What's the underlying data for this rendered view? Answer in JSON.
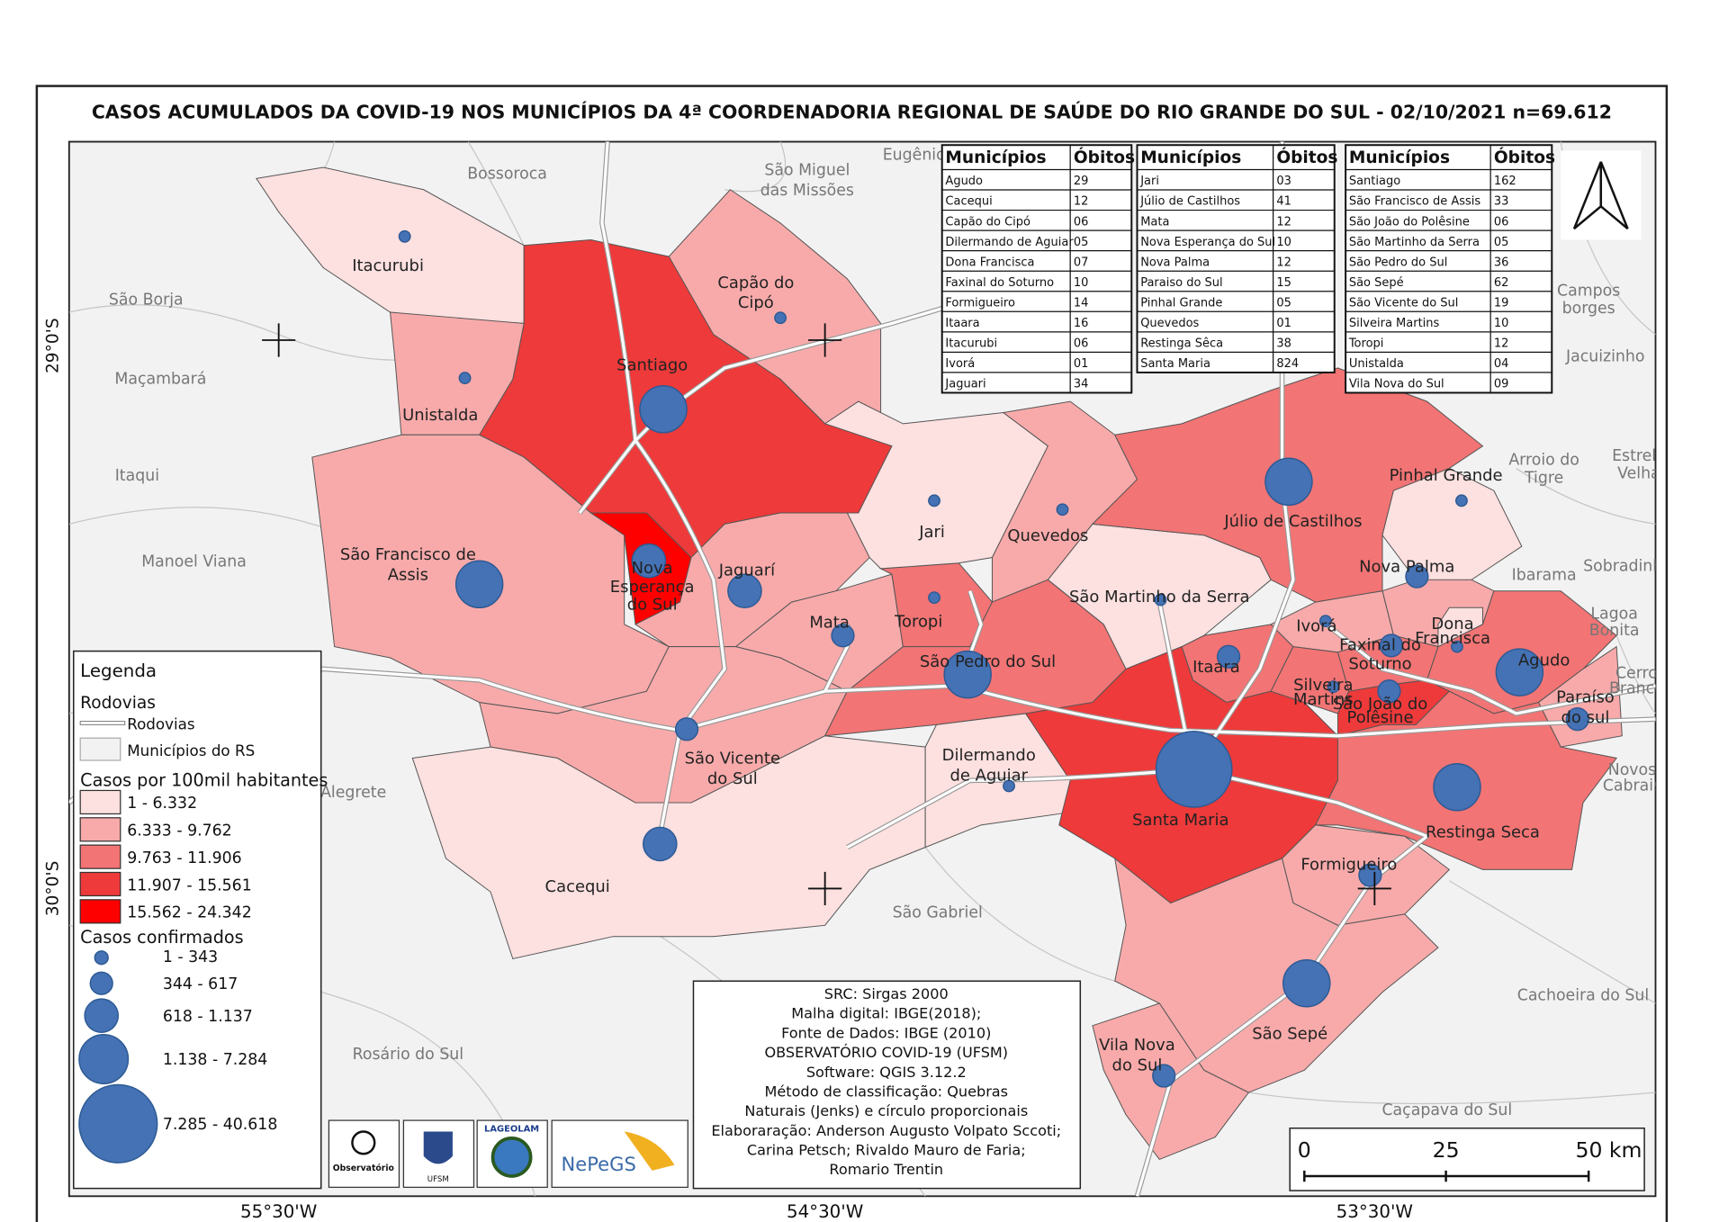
{
  "title": "CASOS ACUMULADOS DA COVID-19 NOS MUNICÍPIOS DA 4ª COORDENADORIA REGIONAL DE SAÚDE DO RIO GRANDE DO SUL - 02/10/2021 n=69.612",
  "colors": {
    "class1": "#fde0e0",
    "class2": "#f8aaaa",
    "class3": "#f27474",
    "class4": "#ee3a3a",
    "class5": "#ff0000",
    "bubble": "#4472b4",
    "background": "#f2f2f2"
  },
  "municipalities": [
    {
      "name": "Itacurubi",
      "rate_class": 1
    },
    {
      "name": "Capão do Cipó",
      "rate_class": 2
    },
    {
      "name": "Santiago",
      "rate_class": 4
    },
    {
      "name": "Unistalda",
      "rate_class": 2
    },
    {
      "name": "São Francisco de Assis",
      "rate_class": 2
    },
    {
      "name": "Nova Esperança do Sul",
      "rate_class": 5
    },
    {
      "name": "Jaguari",
      "rate_class": 2
    },
    {
      "name": "Mata",
      "rate_class": 2
    },
    {
      "name": "Toropi",
      "rate_class": 3
    },
    {
      "name": "Jari",
      "rate_class": 1
    },
    {
      "name": "Quevedos",
      "rate_class": 2
    },
    {
      "name": "São Vicente do Sul",
      "rate_class": 2
    },
    {
      "name": "Cacequi",
      "rate_class": 1
    },
    {
      "name": "São Pedro do Sul",
      "rate_class": 3
    },
    {
      "name": "Dilermando de Aguiar",
      "rate_class": 1
    },
    {
      "name": "São Martinho da Serra",
      "rate_class": 1
    },
    {
      "name": "Júlio de Castilhos",
      "rate_class": 3
    },
    {
      "name": "Pinhal Grande",
      "rate_class": 1
    },
    {
      "name": "Nova Palma",
      "rate_class": 2
    },
    {
      "name": "Itaara",
      "rate_class": 3
    },
    {
      "name": "Santa Maria",
      "rate_class": 4
    },
    {
      "name": "Ivorá",
      "rate_class": 2
    },
    {
      "name": "Silveira Martins",
      "rate_class": 3
    },
    {
      "name": "Faxinal do Soturno",
      "rate_class": 3
    },
    {
      "name": "São João do Polêsine",
      "rate_class": 4
    },
    {
      "name": "Dona Francisca",
      "rate_class": 1
    },
    {
      "name": "Agudo",
      "rate_class": 3
    },
    {
      "name": "Paraíso do Sul",
      "rate_class": 2
    },
    {
      "name": "Restinga Seca",
      "rate_class": 3
    },
    {
      "name": "Formigueiro",
      "rate_class": 2
    },
    {
      "name": "São Sepé",
      "rate_class": 2
    },
    {
      "name": "Vila Nova do Sul",
      "rate_class": 2
    }
  ],
  "map_labels": {
    "itacurubi": "Itacurubi",
    "capao1": "Capão do",
    "capao2": "Cipó",
    "santiago": "Santiago",
    "unistalda": "Unistalda",
    "sfa1": "São Francisco de",
    "sfa2": "Assis",
    "ne1": "Nova",
    "ne2": "Esperança",
    "ne3": "do Sul",
    "jaguari": "Jaguarí",
    "mata": "Mata",
    "toropi": "Toropi",
    "jari": "Jari",
    "quevedos": "Quevedos",
    "svs1": "São Vicente",
    "svs2": "do Sul",
    "cacequi": "Cacequi",
    "sps": "São Pedro do Sul",
    "da1": "Dilermando",
    "da2": "de Aguiar",
    "sms": "São Martinho da Serra",
    "jc": "Júlio de Castilhos",
    "pg": "Pinhal Grande",
    "np": "Nova Palma",
    "itaara": "Itaara",
    "sm": "Santa Maria",
    "ivora": "Ivorá",
    "fs1": "Faxinal do",
    "fs2": "Soturno",
    "df1": "Dona",
    "df2": "Francisca",
    "sil1": "Silveira",
    "sil2": "Martins",
    "sjp1": "São João do",
    "sjp2": "Polêsine",
    "agudo": "Agudo",
    "ps1": "Paraíso",
    "ps2": "do sul",
    "rs": "Restinga Seca",
    "form": "Formigueiro",
    "ss": "São Sepé",
    "vn1": "Vila Nova",
    "vn2": "do Sul"
  },
  "neighbor_labels": {
    "bossoroca": "Bossoroca",
    "smm1": "São Miguel",
    "smm2": "das Missões",
    "eugenio": "Eugênio",
    "saoborja": "São Borja",
    "macambara": "Maçambará",
    "itaqui": "Itaqui",
    "manoel": "Manoel Viana",
    "alegrete": "Alegrete",
    "rosario": "Rosário do Sul",
    "saogabriel": "São Gabriel",
    "cachoeira": "Cachoeira do Sul",
    "cacapava": "Caçapava do Sul",
    "campos1": "Campos",
    "campos2": "borges",
    "jacuizinho": "Jacuizinho",
    "arroio1": "Arroio do",
    "arroio2": "Tigre",
    "estrela1": "Estrela",
    "estrela2": "Velha",
    "ibarama": "Ibarama",
    "sobradinho": "Sobradinho",
    "lagoa1": "Lagoa",
    "lagoa2": "Bonita",
    "cerro1": "Cerro",
    "cerro2": "Branco",
    "novos1": "Novos",
    "novos2": "Cabrais"
  },
  "graticule": {
    "lat_29": "29°0'S",
    "lat_30": "30°0'S",
    "lon_5530": "55°30'W",
    "lon_5430": "54°30'W",
    "lon_5330": "53°30'W"
  },
  "tables": [
    {
      "header": [
        "Municípios",
        "Óbitos"
      ],
      "rows": [
        [
          "Agudo",
          "29"
        ],
        [
          "Cacequi",
          "12"
        ],
        [
          "Capão do Cipó",
          "06"
        ],
        [
          "Dilermando de Aguiar",
          "05"
        ],
        [
          "Dona Francisca",
          "07"
        ],
        [
          "Faxinal do Soturno",
          "10"
        ],
        [
          "Formigueiro",
          "14"
        ],
        [
          "Itaara",
          "16"
        ],
        [
          "Itacurubi",
          "06"
        ],
        [
          "Ivorá",
          "01"
        ],
        [
          "Jaguari",
          "34"
        ]
      ]
    },
    {
      "header": [
        "Municípios",
        "Óbitos"
      ],
      "rows": [
        [
          "Jari",
          "03"
        ],
        [
          "Júlio de Castilhos",
          "41"
        ],
        [
          "Mata",
          "12"
        ],
        [
          "Nova Esperança do Sul",
          "10"
        ],
        [
          "Nova Palma",
          "12"
        ],
        [
          "Paraiso do Sul",
          "15"
        ],
        [
          "Pinhal Grande",
          "05"
        ],
        [
          "Quevedos",
          "01"
        ],
        [
          "Restinga Sêca",
          "38"
        ],
        [
          "Santa Maria",
          "824"
        ]
      ]
    },
    {
      "header": [
        "Municípios",
        "Óbitos"
      ],
      "rows": [
        [
          "Santiago",
          "162"
        ],
        [
          "São Francisco de Assis",
          "33"
        ],
        [
          "São João do Polêsine",
          "06"
        ],
        [
          "São Martinho da Serra",
          "05"
        ],
        [
          "São Pedro do Sul",
          "36"
        ],
        [
          "São Sepé",
          "62"
        ],
        [
          "São Vicente do Sul",
          "19"
        ],
        [
          "Silveira Martins",
          "10"
        ],
        [
          "Toropi",
          "12"
        ],
        [
          "Unistalda",
          "04"
        ],
        [
          "Vila Nova do Sul",
          "09"
        ]
      ]
    }
  ],
  "legend": {
    "title": "Legenda",
    "roads_heading": "Rodovias",
    "roads_item": "Rodovias",
    "municipalities_item": "Municípios do RS",
    "rate_heading": "Casos por 100mil habitantes",
    "rate_classes": [
      "1 - 6.332",
      "6.333 - 9.762",
      "9.763 - 11.906",
      "11.907 - 15.561",
      "15.562 - 24.342"
    ],
    "cases_heading": "Casos confirmados",
    "cases_classes": [
      "1 - 343",
      "344 - 617",
      "618 - 1.137",
      "1.138 - 7.284",
      "7.285 - 40.618"
    ]
  },
  "credits": [
    "SRC: Sirgas 2000",
    "Malha digital: IBGE(2018);",
    "Fonte de Dados: IBGE (2010)",
    "OBSERVATÓRIO COVID-19 (UFSM)",
    "Software: QGIS 3.12.2",
    "Método de classificação: Quebras",
    "Naturais (Jenks) e círculo proporcionais",
    "Elaboraração: Anderson Augusto Volpato Sccoti;",
    "Carina Petsch; Rivaldo Mauro de Faria;",
    "Romario Trentin"
  ],
  "scale_bar": {
    "ticks": [
      "0",
      "25",
      "50 km"
    ]
  },
  "logos": {
    "observatorio": "Observatório",
    "ufsm": "UFSM",
    "lageolam": "LAGEOLAM",
    "nepegs": "NePeGS"
  }
}
